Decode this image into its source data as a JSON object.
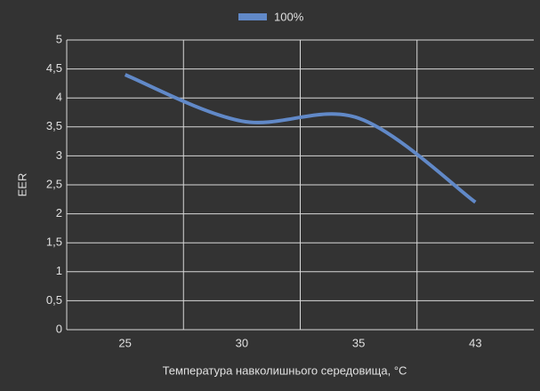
{
  "chart_data": {
    "type": "line",
    "y_label": "EER",
    "x_label": "Температура навколишнього середовища, °C",
    "categories": [
      "25",
      "30",
      "35",
      "43"
    ],
    "series": [
      {
        "name": "100%",
        "color": "#6189c8",
        "values": [
          4.4,
          3.6,
          3.65,
          2.2
        ]
      }
    ],
    "ylim": [
      0,
      5
    ],
    "yticks": [
      0,
      {
        "value": 0.5,
        "label": "0,5"
      },
      1,
      {
        "value": 1.5,
        "label": "1,5"
      },
      2,
      {
        "value": 2.5,
        "label": "2,5"
      },
      3,
      {
        "value": 3.5,
        "label": "3,5"
      },
      4,
      {
        "value": 4.5,
        "label": "4,5"
      },
      5
    ],
    "grid": true
  }
}
